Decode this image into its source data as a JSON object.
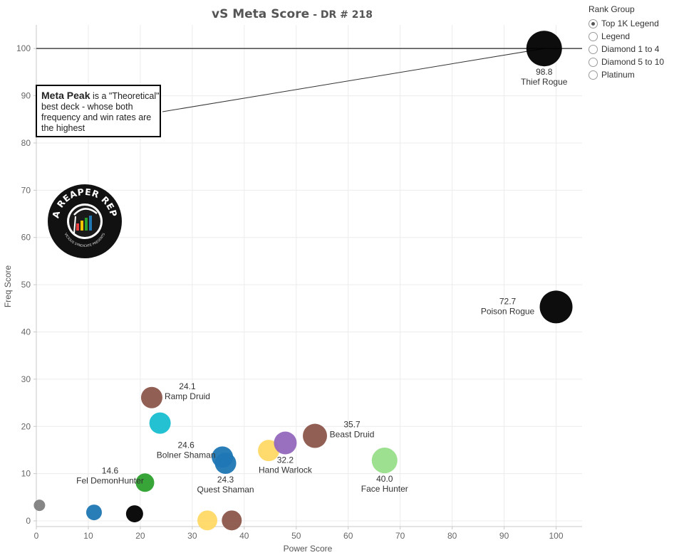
{
  "chart_data": {
    "type": "scatter",
    "title": "vS Meta Score",
    "subtitle": "- DR # 218",
    "xlabel": "Power Score",
    "ylabel": "Freq Score",
    "xlim": [
      0,
      105
    ],
    "ylim": [
      -1.2,
      105
    ],
    "x_ticks": [
      0,
      10,
      20,
      30,
      40,
      50,
      60,
      70,
      80,
      90,
      100
    ],
    "y_ticks": [
      0,
      10,
      20,
      30,
      40,
      50,
      60,
      70,
      80,
      90,
      100
    ],
    "grid": true,
    "reference_line": {
      "y": 100
    },
    "points": [
      {
        "x": 97.7,
        "y": 100.0,
        "size": 25,
        "color": "#000000",
        "score": "98.8",
        "name": "Thief Rogue",
        "label_pos": "below"
      },
      {
        "x": 100.0,
        "y": 45.3,
        "size": 23,
        "color": "#000000",
        "score": "72.7",
        "name": "Poison Rogue",
        "label_pos": "left"
      },
      {
        "x": 22.2,
        "y": 26.1,
        "size": 15,
        "color": "#8c564b",
        "score": "24.1",
        "name": "Ramp Druid",
        "label_pos": "right-up"
      },
      {
        "x": 23.8,
        "y": 20.7,
        "size": 15,
        "color": "#17becf",
        "score": "",
        "name": "",
        "label_pos": "none"
      },
      {
        "x": 35.8,
        "y": 13.5,
        "size": 15,
        "color": "#1f77b4",
        "score": "24.6",
        "name": "Bolner Shaman",
        "label_pos": "left-up"
      },
      {
        "x": 36.4,
        "y": 12.2,
        "size": 15,
        "color": "#1f77b4",
        "score": "24.3",
        "name": "Quest Shaman",
        "label_pos": "below"
      },
      {
        "x": 44.7,
        "y": 14.9,
        "size": 15,
        "color": "#ffd966",
        "score": "",
        "name": "",
        "label_pos": "none"
      },
      {
        "x": 47.9,
        "y": 16.5,
        "size": 16,
        "color": "#9467bd",
        "score": "32.2",
        "name": "Hand Warlock",
        "label_pos": "below"
      },
      {
        "x": 53.6,
        "y": 18.0,
        "size": 17,
        "color": "#8c564b",
        "score": "35.7",
        "name": "Beast Druid",
        "label_pos": "right-up"
      },
      {
        "x": 67.0,
        "y": 12.8,
        "size": 18,
        "color": "#98df8a",
        "score": "40.0",
        "name": "Face Hunter",
        "label_pos": "below"
      },
      {
        "x": 20.9,
        "y": 8.1,
        "size": 13,
        "color": "#2ca02c",
        "score": "14.6",
        "name": "Fel DemonHunter",
        "label_pos": "left-up"
      },
      {
        "x": 11.1,
        "y": 1.8,
        "size": 11,
        "color": "#1f77b4",
        "score": "",
        "name": "",
        "label_pos": "none"
      },
      {
        "x": 18.9,
        "y": 1.5,
        "size": 12,
        "color": "#000000",
        "score": "",
        "name": "",
        "label_pos": "none"
      },
      {
        "x": 0.6,
        "y": 3.3,
        "size": 8,
        "color": "#7f7f7f",
        "score": "",
        "name": "",
        "label_pos": "none"
      },
      {
        "x": 32.9,
        "y": 0.1,
        "size": 14,
        "color": "#ffd966",
        "score": "",
        "name": "",
        "label_pos": "none"
      },
      {
        "x": 37.6,
        "y": 0.1,
        "size": 14,
        "color": "#8c564b",
        "score": "",
        "name": "",
        "label_pos": "none"
      }
    ]
  },
  "legend": {
    "title": "Rank Group",
    "options": [
      {
        "label": "Top 1K Legend",
        "selected": true
      },
      {
        "label": "Legend",
        "selected": false
      },
      {
        "label": "Diamond 1 to 4",
        "selected": false
      },
      {
        "label": "Diamond 5 to 10",
        "selected": false
      },
      {
        "label": "Platinum",
        "selected": false
      }
    ]
  },
  "annotation": {
    "bold": "Meta Peak",
    "text": " is a \"Theoretical\" best deck - whose both frequency and win rates are the highest",
    "target_point": "Thief Rogue"
  },
  "logo": {
    "icon": "data-reaper-report-logo",
    "text": "DATA REAPER REPORT",
    "subtext": "VICIOUS SYNDICATE PRESENTS"
  }
}
